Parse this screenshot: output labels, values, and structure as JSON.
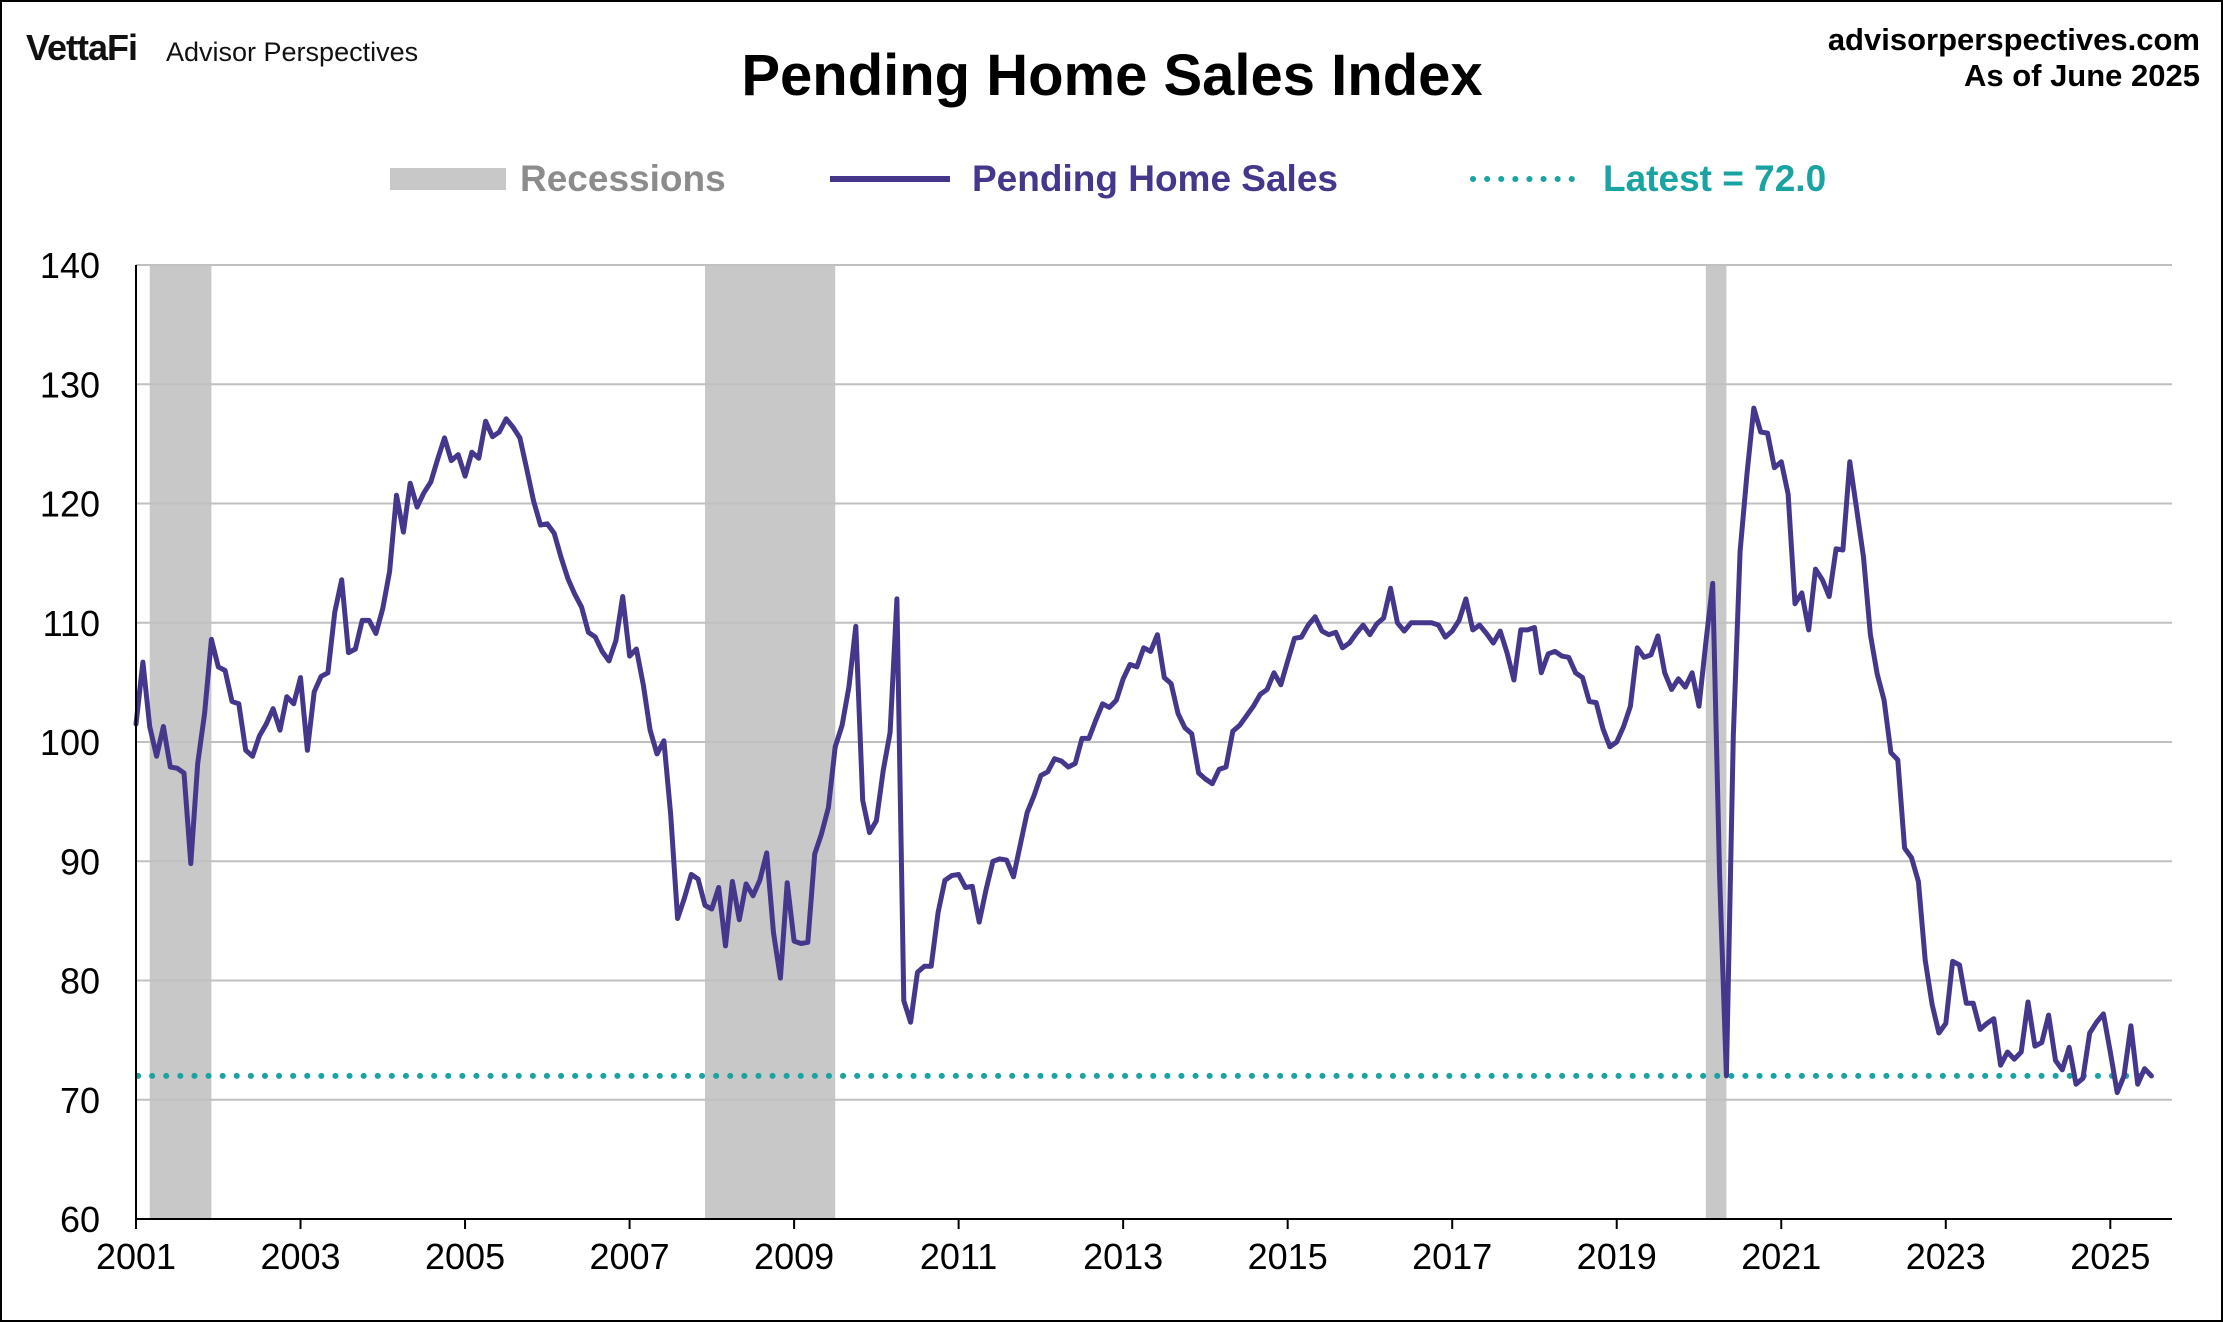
{
  "brand": {
    "logo": "VettaFi",
    "name": "Advisor Perspectives"
  },
  "header": {
    "site": "advisorperspectives.com",
    "as_of": "As of June 2025"
  },
  "legend": {
    "recessions": "Recessions",
    "series": "Pending Home Sales",
    "latest": "Latest = 72.0"
  },
  "colors": {
    "line": "#46378c",
    "latest": "#1aa3a3",
    "recession": "#c8c8c8",
    "recession_label": "#8c8c8c",
    "grid": "#c0c0c0"
  },
  "chart_data": {
    "type": "line",
    "title": "Pending Home Sales Index",
    "xlabel": "",
    "ylabel": "",
    "ylim": [
      60,
      140
    ],
    "yticks": [
      60,
      70,
      80,
      90,
      100,
      110,
      120,
      130,
      140
    ],
    "xlim": [
      2001.0,
      2025.75
    ],
    "xticks": [
      "2001",
      "2003",
      "2005",
      "2007",
      "2009",
      "2011",
      "2013",
      "2015",
      "2017",
      "2019",
      "2021",
      "2023",
      "2025"
    ],
    "grid": true,
    "legend_position": "top",
    "latest_value": 72.0,
    "recessions": [
      {
        "start": "2001-03",
        "end": "2001-11"
      },
      {
        "start": "2007-12",
        "end": "2009-06"
      },
      {
        "start": "2020-02",
        "end": "2020-04"
      }
    ],
    "series": [
      {
        "name": "Pending Home Sales",
        "start": "2001-01",
        "frequency": "monthly",
        "values": [
          101.5,
          106.7,
          101.3,
          98.8,
          101.3,
          97.9,
          97.8,
          97.4,
          89.8,
          98.2,
          102.4,
          108.6,
          106.3,
          106.0,
          103.4,
          103.2,
          99.3,
          98.8,
          100.5,
          101.5,
          102.8,
          101.0,
          103.8,
          103.2,
          105.4,
          99.3,
          104.2,
          105.5,
          105.8,
          110.9,
          113.6,
          107.5,
          107.8,
          110.2,
          110.2,
          109.1,
          111.2,
          114.3,
          120.7,
          117.6,
          121.7,
          119.7,
          120.9,
          121.8,
          123.7,
          125.5,
          123.6,
          124.1,
          122.3,
          124.3,
          123.8,
          126.9,
          125.6,
          126.0,
          127.1,
          126.4,
          125.5,
          122.9,
          120.2,
          118.2,
          118.3,
          117.5,
          115.5,
          113.7,
          112.4,
          111.3,
          109.2,
          108.8,
          107.6,
          106.8,
          108.5,
          112.2,
          107.2,
          107.8,
          104.8,
          101.0,
          99.0,
          100.1,
          93.9,
          85.2,
          86.9,
          88.9,
          88.5,
          86.3,
          86.0,
          87.8,
          82.9,
          88.3,
          85.1,
          88.1,
          87.1,
          88.4,
          90.7,
          84.0,
          80.2,
          88.2,
          83.3,
          83.1,
          83.2,
          90.6,
          92.3,
          94.5,
          99.6,
          101.4,
          104.6,
          109.7,
          95.1,
          92.4,
          93.4,
          97.6,
          100.8,
          112.0,
          78.3,
          76.5,
          80.7,
          81.2,
          81.2,
          85.7,
          88.4,
          88.8,
          88.9,
          87.8,
          87.9,
          84.9,
          87.6,
          90.0,
          90.2,
          90.1,
          88.7,
          91.4,
          94.1,
          95.5,
          97.2,
          97.5,
          98.6,
          98.4,
          97.9,
          98.2,
          100.3,
          100.3,
          101.8,
          103.2,
          102.9,
          103.5,
          105.3,
          106.5,
          106.3,
          107.9,
          107.6,
          109.0,
          105.4,
          104.9,
          102.4,
          101.2,
          100.7,
          97.4,
          96.9,
          96.5,
          97.7,
          97.9,
          100.9,
          101.4,
          102.2,
          103.0,
          104.0,
          104.4,
          105.8,
          104.8,
          106.8,
          108.7,
          108.8,
          109.8,
          110.5,
          109.3,
          109.0,
          109.2,
          107.9,
          108.3,
          109.1,
          109.8,
          109.0,
          109.9,
          110.4,
          112.9,
          110.0,
          109.3,
          110.0,
          110.0,
          110.0,
          110.0,
          109.8,
          108.8,
          109.3,
          110.2,
          112.0,
          109.4,
          109.8,
          109.1,
          108.3,
          109.3,
          107.5,
          105.2,
          109.4,
          109.4,
          109.6,
          105.8,
          107.4,
          107.6,
          107.2,
          107.1,
          105.8,
          105.4,
          103.4,
          103.3,
          101.1,
          99.6,
          100.0,
          101.3,
          103.0,
          107.9,
          107.1,
          107.3,
          108.9,
          105.8,
          104.4,
          105.3,
          104.6,
          105.8,
          103.0,
          108.3,
          113.3,
          88.8,
          72.0,
          100.5,
          116.0,
          122.5,
          128.0,
          126.0,
          125.9,
          123.0,
          123.5,
          120.8,
          111.6,
          112.5,
          109.4,
          114.5,
          113.6,
          112.2,
          116.2,
          116.1,
          123.5,
          119.5,
          115.5,
          109.0,
          105.7,
          103.5,
          99.1,
          98.5,
          91.1,
          90.3,
          88.3,
          81.7,
          78.0,
          75.6,
          76.4,
          81.6,
          81.3,
          78.1,
          78.1,
          75.9,
          76.4,
          76.8,
          72.9,
          74.0,
          73.4,
          74.0,
          78.2,
          74.5,
          74.8,
          77.1,
          73.3,
          72.5,
          74.4,
          71.3,
          71.8,
          75.6,
          76.5,
          77.2,
          74.0,
          70.6,
          72.0,
          76.2,
          71.3,
          72.6,
          72.0
        ]
      }
    ]
  }
}
